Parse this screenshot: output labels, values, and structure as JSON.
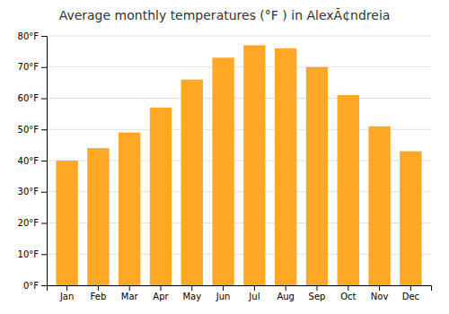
{
  "chart_data": {
    "type": "bar",
    "title": "Average monthly temperatures (°F ) in AlexÃ¢ndreia",
    "categories": [
      "Jan",
      "Feb",
      "Mar",
      "Apr",
      "May",
      "Jun",
      "Jul",
      "Aug",
      "Sep",
      "Oct",
      "Nov",
      "Dec"
    ],
    "values": [
      40,
      44,
      49,
      57,
      66,
      73,
      77,
      76,
      70,
      61,
      51,
      43
    ],
    "color": "#FFA826",
    "ylim": [
      0,
      80
    ],
    "yticks": [
      {
        "value": 0,
        "label": "0°F"
      },
      {
        "value": 10,
        "label": "10°F"
      },
      {
        "value": 20,
        "label": "20°F"
      },
      {
        "value": 30,
        "label": "30°F"
      },
      {
        "value": 40,
        "label": "40°F"
      },
      {
        "value": 50,
        "label": "50°F"
      },
      {
        "value": 60,
        "label": "60°F"
      },
      {
        "value": 70,
        "label": "70°F"
      },
      {
        "value": 80,
        "label": "80°F"
      }
    ],
    "grid": true
  }
}
